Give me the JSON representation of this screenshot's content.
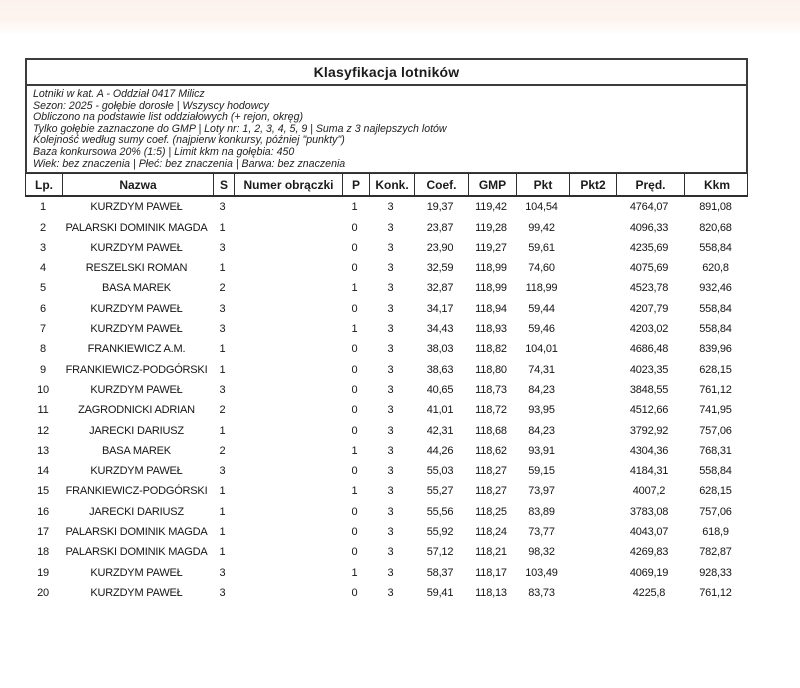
{
  "title": "Klasyfikacja lotników",
  "info_lines": [
    "Lotniki w kat. A - Oddział 0417 Milicz",
    "Sezon: 2025 - gołębie dorosłe  |  Wszyscy hodowcy",
    "Obliczono na podstawie list oddziałowych (+ rejon, okręg)",
    "Tylko gołębie zaznaczone do GMP  |  Loty nr: 1, 2, 3, 4, 5, 9  |  Suma z 3 najlepszych lotów",
    "Kolejność według sumy coef. (najpierw konkursy, później \"punkty\")",
    "Baza konkursowa 20% (1:5) | Limit kkm na gołębia: 450",
    "Wiek: bez znaczenia  |  Płeć: bez znaczenia  |  Barwa: bez znaczenia"
  ],
  "table": {
    "columns": [
      "Lp.",
      "Nazwa",
      "S",
      "Numer obrączki",
      "P",
      "Konk.",
      "Coef.",
      "GMP",
      "Pkt",
      "Pkt2",
      "Pręd.",
      "Kkm"
    ],
    "rows": [
      [
        "1",
        "KURZDYM PAWEŁ",
        "3",
        "",
        "1",
        "3",
        "19,37",
        "119,42",
        "104,54",
        "",
        "4764,07",
        "891,08"
      ],
      [
        "2",
        "PALARSKI DOMINIK MAGDA",
        "1",
        "",
        "0",
        "3",
        "23,87",
        "119,28",
        "99,42",
        "",
        "4096,33",
        "820,68"
      ],
      [
        "3",
        "KURZDYM PAWEŁ",
        "3",
        "",
        "0",
        "3",
        "23,90",
        "119,27",
        "59,61",
        "",
        "4235,69",
        "558,84"
      ],
      [
        "4",
        "RESZELSKI ROMAN",
        "1",
        "",
        "0",
        "3",
        "32,59",
        "118,99",
        "74,60",
        "",
        "4075,69",
        "620,8"
      ],
      [
        "5",
        "BASA MAREK",
        "2",
        "",
        "1",
        "3",
        "32,87",
        "118,99",
        "118,99",
        "",
        "4523,78",
        "932,46"
      ],
      [
        "6",
        "KURZDYM PAWEŁ",
        "3",
        "",
        "0",
        "3",
        "34,17",
        "118,94",
        "59,44",
        "",
        "4207,79",
        "558,84"
      ],
      [
        "7",
        "KURZDYM PAWEŁ",
        "3",
        "",
        "1",
        "3",
        "34,43",
        "118,93",
        "59,46",
        "",
        "4203,02",
        "558,84"
      ],
      [
        "8",
        "FRANKIEWICZ A.M.",
        "1",
        "",
        "0",
        "3",
        "38,03",
        "118,82",
        "104,01",
        "",
        "4686,48",
        "839,96"
      ],
      [
        "9",
        "FRANKIEWICZ-PODGÓRSKI",
        "1",
        "",
        "0",
        "3",
        "38,63",
        "118,80",
        "74,31",
        "",
        "4023,35",
        "628,15"
      ],
      [
        "10",
        "KURZDYM PAWEŁ",
        "3",
        "",
        "0",
        "3",
        "40,65",
        "118,73",
        "84,23",
        "",
        "3848,55",
        "761,12"
      ],
      [
        "11",
        "ZAGRODNICKI ADRIAN",
        "2",
        "",
        "0",
        "3",
        "41,01",
        "118,72",
        "93,95",
        "",
        "4512,66",
        "741,95"
      ],
      [
        "12",
        "JARECKI DARIUSZ",
        "1",
        "",
        "0",
        "3",
        "42,31",
        "118,68",
        "84,23",
        "",
        "3792,92",
        "757,06"
      ],
      [
        "13",
        "BASA MAREK",
        "2",
        "",
        "1",
        "3",
        "44,26",
        "118,62",
        "93,91",
        "",
        "4304,36",
        "768,31"
      ],
      [
        "14",
        "KURZDYM PAWEŁ",
        "3",
        "",
        "0",
        "3",
        "55,03",
        "118,27",
        "59,15",
        "",
        "4184,31",
        "558,84"
      ],
      [
        "15",
        "FRANKIEWICZ-PODGÓRSKI",
        "1",
        "",
        "1",
        "3",
        "55,27",
        "118,27",
        "73,97",
        "",
        "4007,2",
        "628,15"
      ],
      [
        "16",
        "JARECKI DARIUSZ",
        "1",
        "",
        "0",
        "3",
        "55,56",
        "118,25",
        "83,89",
        "",
        "3783,08",
        "757,06"
      ],
      [
        "17",
        "PALARSKI DOMINIK MAGDA",
        "1",
        "",
        "0",
        "3",
        "55,92",
        "118,24",
        "73,77",
        "",
        "4043,07",
        "618,9"
      ],
      [
        "18",
        "PALARSKI DOMINIK MAGDA",
        "1",
        "",
        "0",
        "3",
        "57,12",
        "118,21",
        "98,32",
        "",
        "4269,83",
        "782,87"
      ],
      [
        "19",
        "KURZDYM PAWEŁ",
        "3",
        "",
        "1",
        "3",
        "58,37",
        "118,17",
        "103,49",
        "",
        "4069,19",
        "928,33"
      ],
      [
        "20",
        "KURZDYM PAWEŁ",
        "3",
        "",
        "0",
        "3",
        "59,41",
        "118,13",
        "83,73",
        "",
        "4225,8",
        "761,12"
      ]
    ]
  },
  "colors": {
    "top_band": "#fcf1ed",
    "border": "#3c3c3c",
    "text": "#151515",
    "background": "#ffffff"
  }
}
